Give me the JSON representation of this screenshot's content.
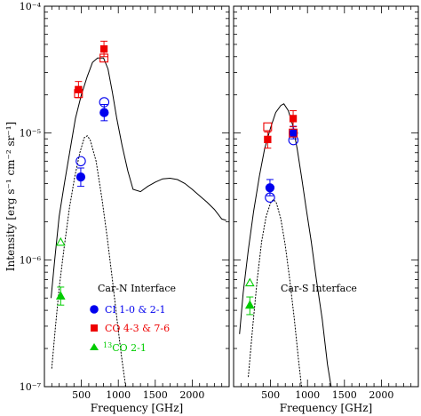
{
  "chart_data": [
    {
      "type": "scatter",
      "panel_label": "Car-N Interface",
      "xlabel": "Frequency [GHz]",
      "ylabel": "Intensity [erg s⁻¹ cm⁻² sr⁻¹]",
      "xlim": [
        0,
        2500
      ],
      "ylim": [
        1e-07,
        0.0001
      ],
      "yscale": "log",
      "x_ticks": [
        "500",
        "1000",
        "1500",
        "2000"
      ],
      "y_ticks": [
        "10⁻⁷",
        "10⁻⁶",
        "10⁻⁵",
        "10⁻⁴"
      ],
      "legend": [
        {
          "label": "CI 1-0 & 2-1",
          "color": "#0000ee",
          "marker": "filled-circle"
        },
        {
          "label": "CO 4-3 & 7-6",
          "color": "#ee0000",
          "marker": "filled-square"
        },
        {
          "label": "13CO 2-1",
          "color": "#00cc00",
          "marker": "filled-triangle"
        }
      ],
      "series": [
        {
          "name": "CI 1-0 & 2-1",
          "color": "#0000ee",
          "marker": "circle",
          "filled": true,
          "points": [
            {
              "x": 492,
              "y": 4.5e-06,
              "err_lo": 3.8e-06,
              "err_hi": 5.3e-06
            },
            {
              "x": 809,
              "y": 1.45e-05,
              "err_lo": 1.25e-05,
              "err_hi": 1.68e-05
            }
          ]
        },
        {
          "name": "",
          "color": "#0000ee",
          "marker": "circle",
          "filled": false,
          "points": [
            {
              "x": 492,
              "y": 6e-06
            },
            {
              "x": 809,
              "y": 1.75e-05
            }
          ]
        },
        {
          "name": "CO 4-3 & 7-6",
          "color": "#ee0000",
          "marker": "square",
          "filled": true,
          "points": [
            {
              "x": 461,
              "y": 2.2e-05,
              "err_lo": 1.9e-05,
              "err_hi": 2.55e-05
            },
            {
              "x": 806,
              "y": 4.6e-05,
              "err_lo": 4e-05,
              "err_hi": 5.3e-05
            }
          ]
        },
        {
          "name": "",
          "color": "#ee0000",
          "marker": "square",
          "filled": false,
          "points": [
            {
              "x": 461,
              "y": 2.05e-05
            },
            {
              "x": 806,
              "y": 3.9e-05
            }
          ]
        },
        {
          "name": "13CO 2-1",
          "color": "#00cc00",
          "marker": "triangle",
          "filled": true,
          "points": [
            {
              "x": 220,
              "y": 5.2e-07,
              "err_lo": 4.4e-07,
              "err_hi": 6.1e-07
            }
          ]
        },
        {
          "name": "",
          "color": "#00cc00",
          "marker": "triangle",
          "filled": false,
          "points": [
            {
              "x": 220,
              "y": 1.38e-06
            }
          ]
        }
      ],
      "curves": [
        {
          "style": "solid",
          "points": [
            [
              90,
              5e-07
            ],
            [
              140,
              1e-06
            ],
            [
              200,
              2.2e-06
            ],
            [
              270,
              4e-06
            ],
            [
              350,
              7.5e-06
            ],
            [
              420,
              1.3e-05
            ],
            [
              500,
              2e-05
            ],
            [
              580,
              2.8e-05
            ],
            [
              650,
              3.6e-05
            ],
            [
              720,
              3.9e-05
            ],
            [
              800,
              3.9e-05
            ],
            [
              860,
              3.2e-05
            ],
            [
              920,
              2.1e-05
            ],
            [
              980,
              1.3e-05
            ],
            [
              1050,
              8e-06
            ],
            [
              1130,
              5e-06
            ],
            [
              1200,
              3.6e-06
            ],
            [
              1300,
              3.45e-06
            ],
            [
              1400,
              3.8e-06
            ],
            [
              1500,
              4.1e-06
            ],
            [
              1600,
              4.35e-06
            ],
            [
              1700,
              4.4e-06
            ],
            [
              1800,
              4.3e-06
            ],
            [
              1900,
              4e-06
            ],
            [
              2000,
              3.6e-06
            ],
            [
              2100,
              3.2e-06
            ],
            [
              2200,
              2.85e-06
            ],
            [
              2300,
              2.5e-06
            ],
            [
              2400,
              2.1e-06
            ],
            [
              2460,
              2.05e-06
            ]
          ]
        },
        {
          "style": "dotted",
          "points": [
            [
              100,
              1.4e-07
            ],
            [
              150,
              3e-07
            ],
            [
              200,
              6e-07
            ],
            [
              270,
              1.3e-06
            ],
            [
              340,
              2.6e-06
            ],
            [
              410,
              4.5e-06
            ],
            [
              480,
              7e-06
            ],
            [
              540,
              9.2e-06
            ],
            [
              580,
              9.5e-06
            ],
            [
              620,
              8.8e-06
            ],
            [
              700,
              6e-06
            ],
            [
              780,
              3e-06
            ],
            [
              850,
              1.5e-06
            ],
            [
              920,
              7e-07
            ],
            [
              980,
              3.5e-07
            ],
            [
              1040,
              1.8e-07
            ],
            [
              1100,
              1e-07
            ]
          ]
        }
      ]
    },
    {
      "type": "scatter",
      "panel_label": "Car-S Interface",
      "xlabel": "Frequency [GHz]",
      "xlim": [
        0,
        2500
      ],
      "ylim": [
        1e-07,
        0.0001
      ],
      "yscale": "log",
      "x_ticks": [
        "500",
        "1000",
        "1500",
        "2000"
      ],
      "series": [
        {
          "name": "CI 1-0 & 2-1",
          "color": "#0000ee",
          "marker": "circle",
          "filled": true,
          "points": [
            {
              "x": 492,
              "y": 3.7e-06,
              "err_lo": 3.2e-06,
              "err_hi": 4.3e-06
            },
            {
              "x": 809,
              "y": 1e-05,
              "err_lo": 9e-06,
              "err_hi": 1.13e-05
            }
          ]
        },
        {
          "name": "",
          "color": "#0000ee",
          "marker": "circle",
          "filled": false,
          "points": [
            {
              "x": 492,
              "y": 3.1e-06
            },
            {
              "x": 809,
              "y": 8.8e-06
            }
          ]
        },
        {
          "name": "CO 4-3 & 7-6",
          "color": "#ee0000",
          "marker": "square",
          "filled": true,
          "points": [
            {
              "x": 461,
              "y": 8.9e-06,
              "err_lo": 7.6e-06,
              "err_hi": 1.02e-05
            },
            {
              "x": 806,
              "y": 1.3e-05,
              "err_lo": 1.12e-05,
              "err_hi": 1.5e-05
            }
          ]
        },
        {
          "name": "",
          "color": "#ee0000",
          "marker": "square",
          "filled": false,
          "points": [
            {
              "x": 461,
              "y": 1.12e-05
            },
            {
              "x": 806,
              "y": 1e-05
            }
          ]
        },
        {
          "name": "13CO 2-1",
          "color": "#00cc00",
          "marker": "triangle",
          "filled": true,
          "points": [
            {
              "x": 220,
              "y": 4.4e-07,
              "err_lo": 3.7e-07,
              "err_hi": 5.1e-07
            }
          ]
        },
        {
          "name": "",
          "color": "#00cc00",
          "marker": "triangle",
          "filled": false,
          "points": [
            {
              "x": 220,
              "y": 6.6e-07
            }
          ]
        }
      ],
      "curves": [
        {
          "style": "solid",
          "points": [
            [
              80,
              2.6e-07
            ],
            [
              130,
              5.5e-07
            ],
            [
              200,
              1.2e-06
            ],
            [
              270,
              2.4e-06
            ],
            [
              350,
              4.6e-06
            ],
            [
              420,
              7.5e-06
            ],
            [
              500,
              1.1e-05
            ],
            [
              570,
              1.45e-05
            ],
            [
              640,
              1.65e-05
            ],
            [
              680,
              1.7e-05
            ],
            [
              740,
              1.5e-05
            ],
            [
              800,
              1.15e-05
            ],
            [
              860,
              7.5e-06
            ],
            [
              920,
              4.5e-06
            ],
            [
              980,
              2.6e-06
            ],
            [
              1050,
              1.4e-06
            ],
            [
              1120,
              7e-07
            ],
            [
              1200,
              3.4e-07
            ],
            [
              1270,
              1.5e-07
            ],
            [
              1320,
              1e-07
            ]
          ]
        },
        {
          "style": "dotted",
          "points": [
            [
              200,
              1.2e-07
            ],
            [
              260,
              3e-07
            ],
            [
              320,
              7e-07
            ],
            [
              380,
              1.4e-06
            ],
            [
              440,
              2.2e-06
            ],
            [
              500,
              2.8e-06
            ],
            [
              540,
              3e-06
            ],
            [
              580,
              2.8e-06
            ],
            [
              640,
              2.1e-06
            ],
            [
              700,
              1.3e-06
            ],
            [
              760,
              7e-07
            ],
            [
              820,
              3.5e-07
            ],
            [
              880,
              1.6e-07
            ],
            [
              920,
              1e-07
            ]
          ]
        }
      ]
    }
  ]
}
